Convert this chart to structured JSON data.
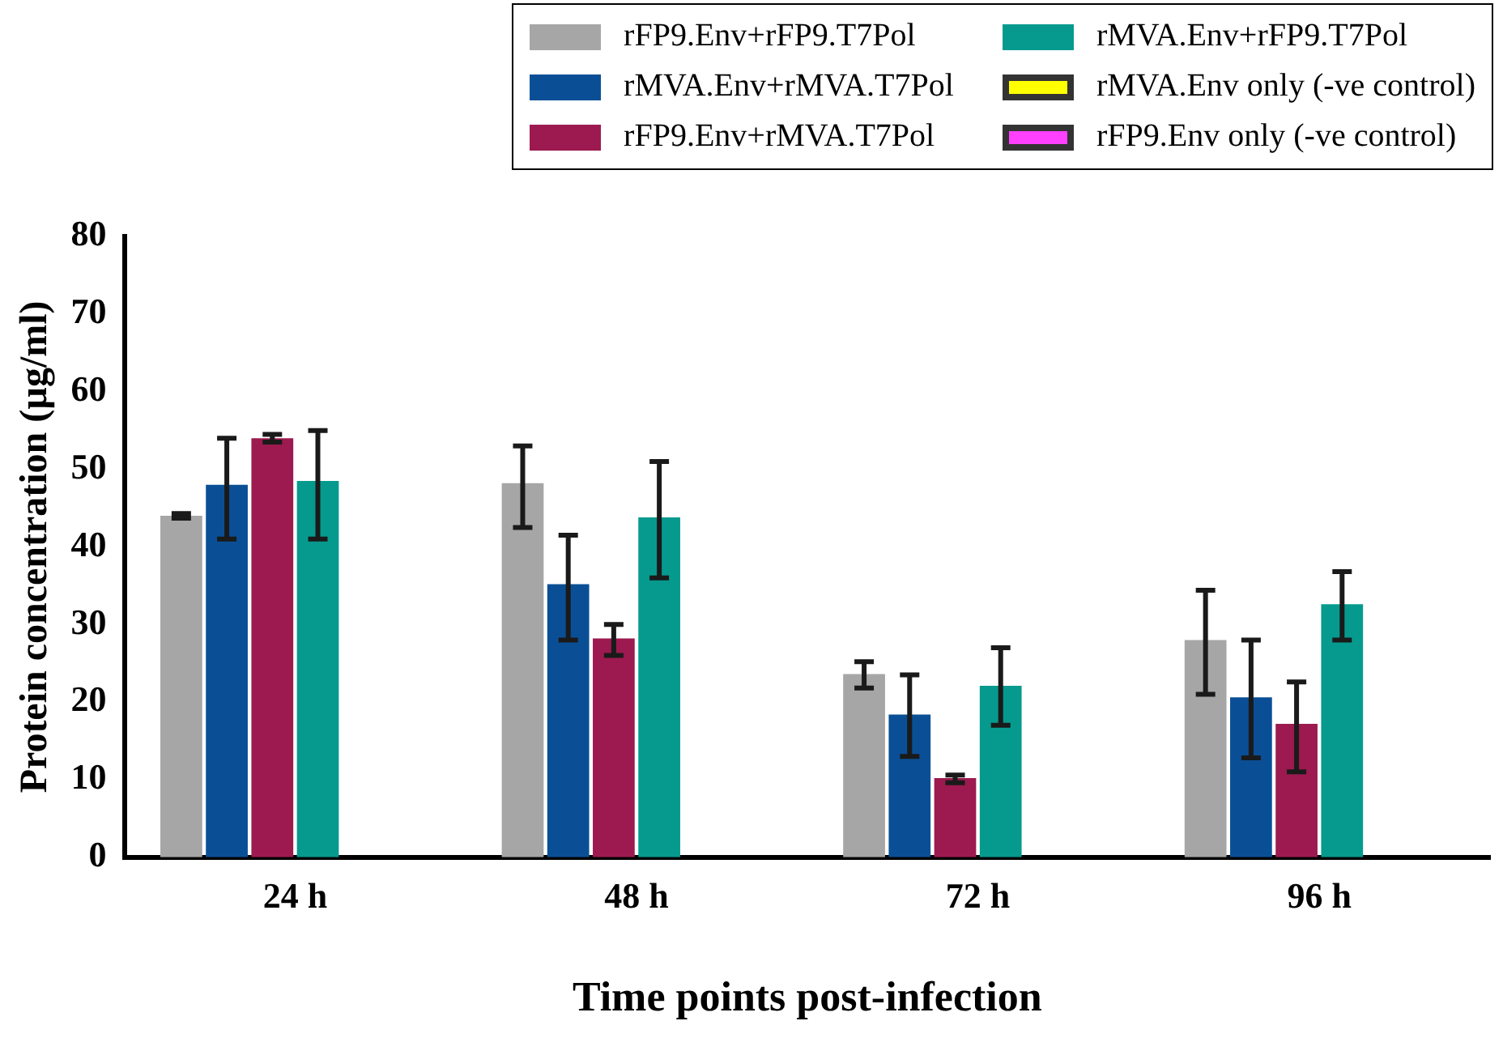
{
  "chart_data": {
    "type": "bar",
    "xlabel": "Time points post-infection",
    "ylabel": "Protein concentration (µg/ml)",
    "categories": [
      "24 h",
      "48 h",
      "72 h",
      "96 h"
    ],
    "series": [
      {
        "name": "rFP9.Env+rFP9.T7Pol",
        "color": "#a6a6a6",
        "values": [
          44,
          48.2,
          23.6,
          28
        ],
        "errors": [
          0.3,
          [
            42.5,
            53
          ],
          [
            21.8,
            25.2
          ],
          [
            21,
            34.4
          ]
        ]
      },
      {
        "name": "rMVA.Env+rMVA.T7Pol",
        "color": "#0a4f96",
        "values": [
          48,
          35.2,
          18.4,
          20.6
        ],
        "errors": [
          [
            41,
            54
          ],
          [
            28,
            41.5
          ],
          [
            13,
            23.5
          ],
          [
            12.8,
            28
          ]
        ]
      },
      {
        "name": "rFP9.Env+rMVA.T7Pol",
        "color": "#9c1a4f",
        "values": [
          54,
          28.2,
          10.2,
          17.2
        ],
        "errors": [
          0.5,
          [
            26,
            30
          ],
          [
            9.6,
            10.6
          ],
          [
            11,
            22.6
          ]
        ]
      },
      {
        "name": "rMVA.Env+rFP9.T7Pol",
        "color": "#069a8e",
        "values": [
          48.5,
          43.8,
          22.1,
          32.6
        ],
        "errors": [
          [
            41,
            55
          ],
          [
            36,
            51
          ],
          [
            17,
            27
          ],
          [
            28,
            36.8
          ]
        ]
      },
      {
        "name": "rMVA.Env only (-ve control)",
        "color": "#ffff00",
        "values": [
          0,
          0,
          0,
          0
        ]
      },
      {
        "name": "rFP9.Env only (-ve control)",
        "color": "#ff40ff",
        "values": [
          0,
          0,
          0,
          0
        ]
      }
    ],
    "ylim": [
      0,
      80
    ],
    "yticks": [
      0,
      10,
      20,
      30,
      40,
      50,
      60,
      70,
      80
    ],
    "grid": false,
    "legend": "top right"
  }
}
